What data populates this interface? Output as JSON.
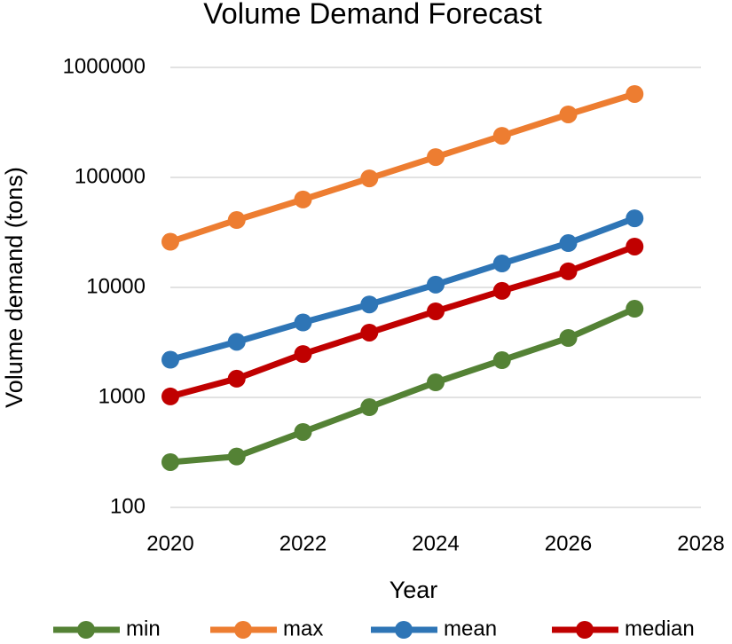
{
  "chart_data": {
    "type": "line",
    "title": "Volume Demand Forecast",
    "x_label": "Year",
    "y_label": "Volume demand (tons)",
    "x": [
      2020,
      2021,
      2022,
      2023,
      2024,
      2025,
      2026,
      2027
    ],
    "series": [
      {
        "name": "min",
        "color": "#548235",
        "values": [
          258,
          290,
          485,
          815,
          1370,
          2180,
          3470,
          6400
        ]
      },
      {
        "name": "max",
        "color": "#ed7d31",
        "values": [
          26000,
          41000,
          63000,
          98000,
          153000,
          239000,
          374000,
          573000
        ]
      },
      {
        "name": "mean",
        "color": "#2e75b6",
        "values": [
          2200,
          3200,
          4800,
          7000,
          10600,
          16500,
          25300,
          42500
        ]
      },
      {
        "name": "median",
        "color": "#c00000",
        "values": [
          1020,
          1480,
          2480,
          3880,
          6060,
          9300,
          14000,
          23500
        ]
      }
    ],
    "xlim": [
      2020,
      2028
    ],
    "xticks": [
      2020,
      2022,
      2024,
      2026,
      2028
    ],
    "ylim": [
      100,
      1000000
    ],
    "yticks": [
      100,
      1000,
      10000,
      100000,
      1000000
    ],
    "y_scale": "log",
    "grid": true,
    "legend": "bottom"
  }
}
